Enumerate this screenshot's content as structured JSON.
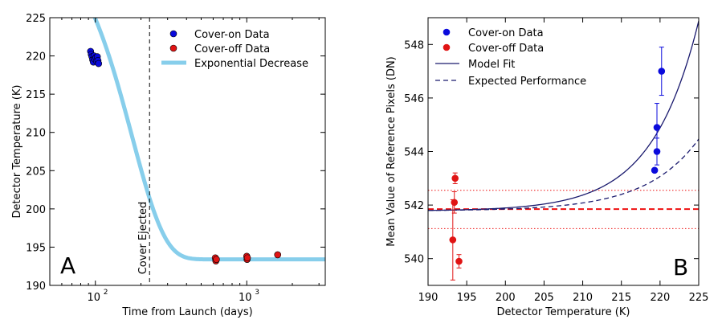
{
  "colors": {
    "cover_on": "#0a0adc",
    "cover_off": "#e01414",
    "exp_curve": "#87ceeb",
    "model_fit": "#1a1a6e",
    "red_ref": "#ee1111"
  },
  "chart_data": [
    {
      "type": "scatter",
      "panel_label": "A",
      "xscale": "log",
      "xlim": [
        50,
        3300
      ],
      "ylim": [
        190,
        225
      ],
      "xlabel": "Time from Launch (days)",
      "ylabel": "Detector Temperature (K)",
      "x_ticks": [
        {
          "value": 100,
          "base": "10",
          "exp": "2"
        },
        {
          "value": 1000,
          "base": "10",
          "exp": "3"
        }
      ],
      "y_ticks": [
        190,
        195,
        200,
        205,
        210,
        215,
        220,
        225
      ],
      "legend_position": "top-right",
      "vline": {
        "x": 228,
        "label": "Cover Ejected"
      },
      "series": [
        {
          "name": "Cover-on Data",
          "points": [
            [
              93,
              220.6
            ],
            [
              94,
              220.2
            ],
            [
              95,
              219.9
            ],
            [
              96,
              219.5
            ],
            [
              97,
              219.2
            ],
            [
              98,
              220.0
            ],
            [
              99,
              219.6
            ],
            [
              101,
              219.8
            ],
            [
              102,
              219.3
            ],
            [
              103,
              219.9
            ],
            [
              104,
              219.4
            ],
            [
              105,
              219.0
            ]
          ]
        },
        {
          "name": "Cover-off Data",
          "points": [
            [
              620,
              193.6
            ],
            [
              625,
              193.2
            ],
            [
              630,
              193.4
            ],
            [
              1000,
              193.8
            ],
            [
              1005,
              193.4
            ],
            [
              1010,
              193.6
            ],
            [
              1600,
              194.0
            ]
          ]
        },
        {
          "name": "Exponential Decrease",
          "curve": {
            "Tfinal": 193.4,
            "amplitude": 43.6,
            "tau": 175,
            "power": 2
          }
        }
      ]
    },
    {
      "type": "scatter",
      "panel_label": "B",
      "xlim": [
        190,
        225
      ],
      "ylim": [
        539,
        549
      ],
      "xlabel": "Detector Temperature (K)",
      "ylabel": "Mean Value of Reference Pixels (DN)",
      "x_ticks": [
        190,
        195,
        200,
        205,
        210,
        215,
        220,
        225
      ],
      "y_ticks": [
        540,
        542,
        544,
        546,
        548
      ],
      "legend_position": "top-left",
      "series": [
        {
          "name": "Cover-on Data",
          "points": [
            {
              "x": 219.3,
              "y": 543.3,
              "err": 0.0
            },
            {
              "x": 219.6,
              "y": 544.0,
              "err": 0.5
            },
            {
              "x": 219.6,
              "y": 544.9,
              "err": 0.9
            },
            {
              "x": 220.2,
              "y": 547.0,
              "err": 0.9
            }
          ]
        },
        {
          "name": "Cover-off Data",
          "points": [
            {
              "x": 193.2,
              "y": 540.7,
              "err": 1.5
            },
            {
              "x": 193.4,
              "y": 542.1,
              "err": 0.4
            },
            {
              "x": 193.5,
              "y": 543.0,
              "err": 0.2
            },
            {
              "x": 194.0,
              "y": 539.9,
              "err": 0.25
            }
          ]
        },
        {
          "name": "Model Fit",
          "curve": {
            "base": 541.8,
            "amplitude": 7.1,
            "T0": 192,
            "scale": 6.05
          }
        },
        {
          "name": "Expected Performance",
          "curve": {
            "base": 541.8,
            "amplitude": 2.68,
            "T0": 192,
            "scale": 6.8
          }
        }
      ],
      "reference_lines": {
        "mean": 541.85,
        "upper": 542.55,
        "lower": 541.12
      }
    }
  ]
}
